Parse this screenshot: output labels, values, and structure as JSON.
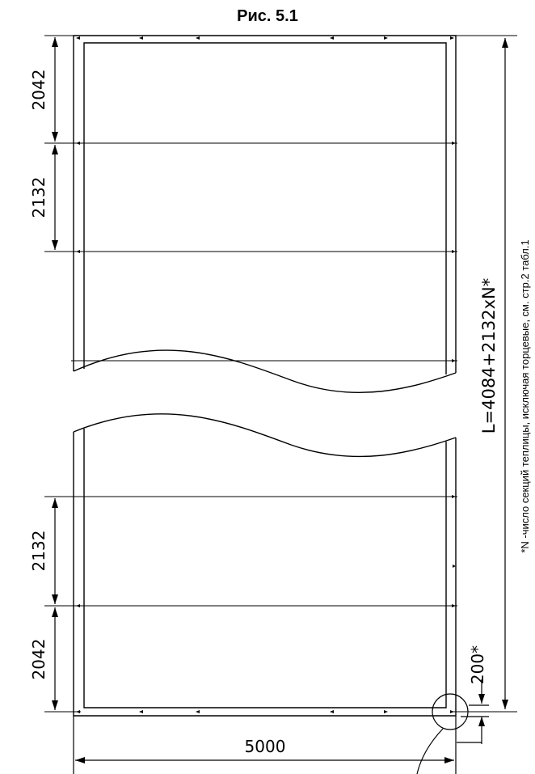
{
  "title": "Рис. 5.1",
  "dimensions": {
    "top_section": "2042",
    "second_section": "2132",
    "lower_second_section": "2132",
    "bottom_section": "2042",
    "width": "5000",
    "offset": "200*",
    "total_length": "L=4084+2132xN*"
  },
  "footnote": "*N -число секций теплицы, исключая торцевые, см. стр.2 табл.1"
}
